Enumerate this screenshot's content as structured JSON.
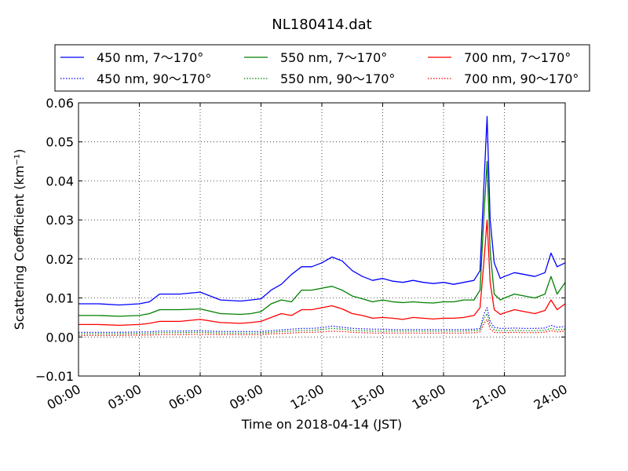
{
  "chart_data": {
    "type": "line",
    "title": "NL180414.dat",
    "xlabel": "Time on 2018-04-14 (JST)",
    "ylabel": "Scattering Coefficient (km⁻¹)",
    "xlim_hours": [
      0,
      24
    ],
    "ylim": [
      -0.01,
      0.06
    ],
    "x_ticks": [
      "00:00",
      "03:00",
      "06:00",
      "09:00",
      "12:00",
      "15:00",
      "18:00",
      "21:00",
      "24:00"
    ],
    "y_ticks": [
      "−0.01",
      "0.00",
      "0.01",
      "0.02",
      "0.03",
      "0.04",
      "0.05",
      "0.06"
    ],
    "grid": true,
    "legend_position": "top",
    "x_hours": [
      0,
      1,
      2,
      3,
      3.5,
      4,
      5,
      6,
      7,
      8,
      8.5,
      9,
      9.5,
      10,
      10.5,
      11,
      11.5,
      12,
      12.5,
      13,
      13.5,
      14,
      14.5,
      15,
      15.5,
      16,
      16.5,
      17,
      17.5,
      18,
      18.5,
      19,
      19.5,
      19.8,
      20,
      20.15,
      20.3,
      20.5,
      20.8,
      21,
      21.5,
      22,
      22.5,
      23,
      23.3,
      23.6,
      24
    ],
    "series": [
      {
        "name": "450 nm, 7～170°",
        "color": "#0000ff",
        "style": "solid",
        "values": [
          0.0085,
          0.0085,
          0.0082,
          0.0085,
          0.009,
          0.011,
          0.011,
          0.0115,
          0.0095,
          0.0092,
          0.0095,
          0.0098,
          0.012,
          0.0135,
          0.016,
          0.018,
          0.018,
          0.019,
          0.0205,
          0.0195,
          0.017,
          0.0155,
          0.0145,
          0.015,
          0.0143,
          0.014,
          0.0145,
          0.014,
          0.0137,
          0.014,
          0.0135,
          0.014,
          0.0145,
          0.017,
          0.04,
          0.0565,
          0.03,
          0.019,
          0.015,
          0.0155,
          0.0165,
          0.016,
          0.0155,
          0.0165,
          0.0215,
          0.018,
          0.019
        ]
      },
      {
        "name": "550 nm, 7～170°",
        "color": "#008000",
        "style": "solid",
        "values": [
          0.0055,
          0.0055,
          0.0053,
          0.0055,
          0.006,
          0.007,
          0.007,
          0.0072,
          0.006,
          0.0058,
          0.006,
          0.0065,
          0.0085,
          0.0095,
          0.009,
          0.012,
          0.012,
          0.0125,
          0.013,
          0.012,
          0.0105,
          0.0098,
          0.009,
          0.0095,
          0.009,
          0.0088,
          0.009,
          0.0088,
          0.0087,
          0.009,
          0.009,
          0.0095,
          0.0095,
          0.012,
          0.032,
          0.045,
          0.022,
          0.011,
          0.0095,
          0.01,
          0.011,
          0.0105,
          0.01,
          0.011,
          0.0155,
          0.011,
          0.014
        ]
      },
      {
        "name": "700 nm, 7～170°",
        "color": "#ff0000",
        "style": "solid",
        "values": [
          0.0032,
          0.0032,
          0.003,
          0.0032,
          0.0035,
          0.004,
          0.004,
          0.0045,
          0.0037,
          0.0035,
          0.0037,
          0.004,
          0.005,
          0.006,
          0.0055,
          0.007,
          0.007,
          0.0075,
          0.008,
          0.0072,
          0.006,
          0.0055,
          0.0048,
          0.005,
          0.0048,
          0.0045,
          0.005,
          0.0048,
          0.0046,
          0.0048,
          0.0048,
          0.005,
          0.0055,
          0.0075,
          0.02,
          0.03,
          0.014,
          0.007,
          0.0058,
          0.0062,
          0.007,
          0.0065,
          0.006,
          0.0068,
          0.0095,
          0.007,
          0.0085
        ]
      },
      {
        "name": "450 nm, 90～170°",
        "color": "#0000ff",
        "style": "dotted",
        "values": [
          0.0012,
          0.0012,
          0.0012,
          0.0013,
          0.0013,
          0.0015,
          0.0015,
          0.0016,
          0.0014,
          0.0014,
          0.0014,
          0.0014,
          0.0016,
          0.0018,
          0.002,
          0.0022,
          0.0022,
          0.0024,
          0.0028,
          0.0025,
          0.0022,
          0.0021,
          0.002,
          0.002,
          0.0019,
          0.0019,
          0.0019,
          0.0019,
          0.0019,
          0.0019,
          0.0019,
          0.0019,
          0.002,
          0.0022,
          0.006,
          0.0075,
          0.004,
          0.0025,
          0.0022,
          0.0022,
          0.0023,
          0.0022,
          0.0022,
          0.0023,
          0.003,
          0.0025,
          0.0027
        ]
      },
      {
        "name": "550 nm, 90～170°",
        "color": "#008000",
        "style": "dotted",
        "values": [
          0.0008,
          0.0008,
          0.0008,
          0.0009,
          0.0009,
          0.0011,
          0.0011,
          0.0012,
          0.001,
          0.001,
          0.001,
          0.001,
          0.0012,
          0.0014,
          0.0015,
          0.0017,
          0.0017,
          0.0019,
          0.0022,
          0.002,
          0.0017,
          0.0016,
          0.0015,
          0.0015,
          0.0015,
          0.0015,
          0.0015,
          0.0015,
          0.0015,
          0.0015,
          0.0015,
          0.0015,
          0.0016,
          0.0018,
          0.0048,
          0.006,
          0.003,
          0.0018,
          0.0016,
          0.0016,
          0.0017,
          0.0016,
          0.0016,
          0.0017,
          0.0022,
          0.0018,
          0.002
        ]
      },
      {
        "name": "700 nm, 90～170°",
        "color": "#ff0000",
        "style": "dotted",
        "values": [
          0.0004,
          0.0004,
          0.0004,
          0.0005,
          0.0005,
          0.0006,
          0.0006,
          0.0007,
          0.0006,
          0.0006,
          0.0006,
          0.0006,
          0.0008,
          0.0009,
          0.001,
          0.0012,
          0.0012,
          0.0013,
          0.0015,
          0.0014,
          0.0012,
          0.0011,
          0.001,
          0.001,
          0.001,
          0.001,
          0.001,
          0.001,
          0.001,
          0.001,
          0.001,
          0.001,
          0.0011,
          0.0013,
          0.0035,
          0.0045,
          0.002,
          0.0012,
          0.0011,
          0.0011,
          0.0012,
          0.0011,
          0.0011,
          0.0012,
          0.0016,
          0.0013,
          0.0015
        ]
      }
    ]
  }
}
